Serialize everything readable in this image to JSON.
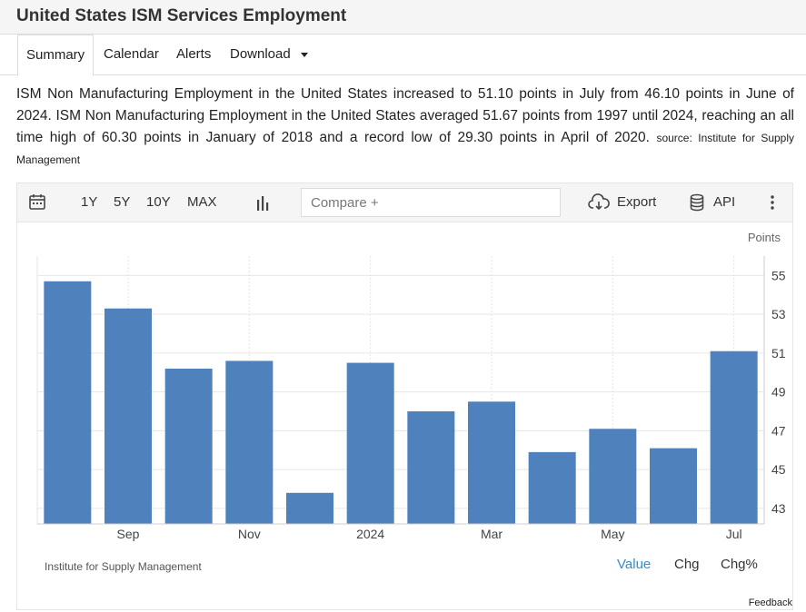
{
  "page": {
    "title": "United States ISM Services Employment"
  },
  "tabs": [
    {
      "label": "Summary",
      "active": true
    },
    {
      "label": "Calendar",
      "active": false
    },
    {
      "label": "Alerts",
      "active": false
    },
    {
      "label": "Download",
      "active": false,
      "dropdown": true
    }
  ],
  "description": {
    "text": "ISM Non Manufacturing Employment in the United States increased to 51.10 points in July from 46.10 points in June of 2024. ISM Non Manufacturing Employment in the United States averaged 51.67 points from 1997 until 2024, reaching an all time high of 60.30 points in January of 2018 and a record low of 29.30 points in April of 2020.",
    "source": "source: Institute for Supply Management"
  },
  "toolbar": {
    "calendar_icon": "calendar-icon",
    "ranges": [
      "1Y",
      "5Y",
      "10Y",
      "MAX"
    ],
    "chart_type_icon": "bar-chart-icon",
    "compare_placeholder": "Compare +",
    "export_icon": "cloud-download-icon",
    "export_label": "Export",
    "api_icon": "database-icon",
    "api_label": "API",
    "more_icon": "more-vertical-icon"
  },
  "chart_data": {
    "type": "bar",
    "categories": [
      "2023-08",
      "2023-09",
      "2023-10",
      "2023-11",
      "2023-12",
      "2024-01",
      "2024-02",
      "2024-03",
      "2024-04",
      "2024-05",
      "2024-06",
      "2024-07"
    ],
    "values": [
      54.7,
      53.3,
      50.2,
      50.6,
      43.8,
      50.5,
      48.0,
      48.5,
      45.9,
      47.1,
      46.1,
      51.1
    ],
    "x_tick_labels": [
      {
        "index": 1,
        "label": "Sep"
      },
      {
        "index": 3,
        "label": "Nov"
      },
      {
        "index": 5,
        "label": "2024"
      },
      {
        "index": 7,
        "label": "Mar"
      },
      {
        "index": 9,
        "label": "May"
      },
      {
        "index": 11,
        "label": "Jul"
      }
    ],
    "y_ticks": [
      43,
      45,
      47,
      49,
      51,
      53,
      55
    ],
    "ylim": [
      42.2,
      56.0
    ],
    "ylabel": "Points",
    "y_axis_position": "right",
    "grid": true,
    "bar_color": "#4f81bd",
    "grid_color": "#e6e6e6"
  },
  "footer": {
    "source_label": "Institute for Supply Management",
    "views": [
      {
        "label": "Value",
        "active": true
      },
      {
        "label": "Chg",
        "active": false
      },
      {
        "label": "Chg%",
        "active": false
      }
    ],
    "active_color": "#2f8fcf",
    "feedback_label": "Feedback"
  }
}
